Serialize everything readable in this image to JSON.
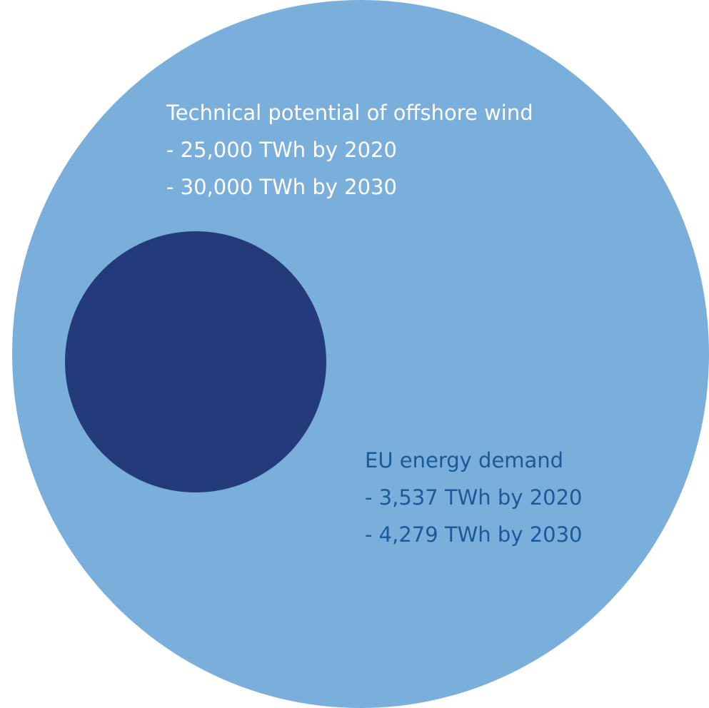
{
  "colors": {
    "outer_circle": "#7aafdc",
    "inner_circle": "#233a7b",
    "outer_text": "#ffffff",
    "inner_text": "#1a5a99"
  },
  "outer": {
    "title": "Technical potential of offshore wind",
    "line1": "- 25,000 TWh by 2020",
    "line2": "- 30,000 TWh by 2030"
  },
  "inner": {
    "title": "EU energy demand",
    "line1": "- 3,537 TWh by 2020",
    "line2": "- 4,279 TWh by 2030"
  }
}
